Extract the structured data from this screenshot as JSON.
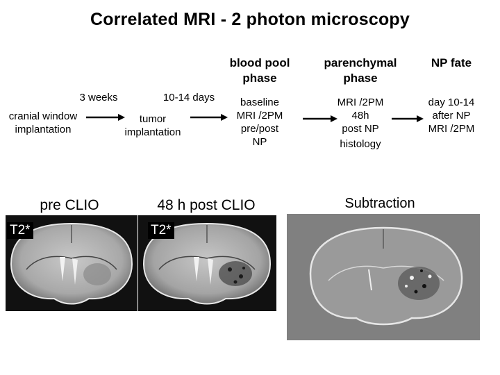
{
  "title": "Correlated MRI - 2 photon microscopy",
  "timeline": {
    "step_cranial": [
      "cranial window",
      "implantation"
    ],
    "interval_1": "3 weeks",
    "step_tumor": [
      "tumor",
      "implantation"
    ],
    "interval_2": "10-14 days",
    "blood_pool": {
      "header": [
        "blood pool",
        "phase"
      ],
      "lines": [
        "baseline",
        "MRI /2PM",
        "pre/post",
        "NP"
      ]
    },
    "parenchymal": {
      "header": [
        "parenchymal",
        "phase"
      ],
      "lines": [
        "MRI /2PM",
        "48h",
        "post NP",
        "histology"
      ]
    },
    "np_fate": {
      "header": "NP fate",
      "lines": [
        "day 10-14",
        "after NP",
        "MRI /2PM"
      ]
    }
  },
  "images": {
    "pre_label": "pre CLIO",
    "post_label": "48 h post CLIO",
    "tag_pre": "T2*",
    "tag_post": "T2*",
    "subtraction_label": "Subtraction"
  },
  "colors": {
    "arrow": "#000000",
    "mri_bg": "#141414",
    "subtraction_bg": "#808080"
  }
}
